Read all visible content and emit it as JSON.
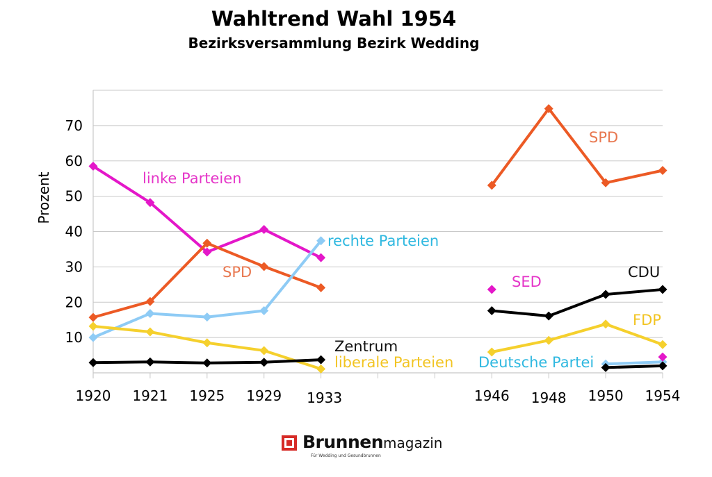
{
  "chart_data": {
    "type": "line",
    "title": "Wahltrend Wahl 1954",
    "subtitle": "Bezirksversammlung Bezirk Wedding",
    "ylabel": "Prozent",
    "xlabel": "",
    "ylim": [
      0,
      80
    ],
    "yticks": [
      10,
      20,
      30,
      40,
      50,
      60,
      70
    ],
    "categories": [
      "1920",
      "1921",
      "1925",
      "1929",
      "1933",
      "",
      "",
      "1946",
      "1948",
      "1950",
      "1954"
    ],
    "grid": true,
    "legend": "none",
    "series": [
      {
        "name": "linke Parteien",
        "color": "#e417c9",
        "x": [
          "1920",
          "1921",
          "1925",
          "1929",
          "1933"
        ],
        "values": [
          58.5,
          48.2,
          34.2,
          40.6,
          32.6
        ]
      },
      {
        "name": "SPD",
        "color": "#ec5a25",
        "x": [
          "1920",
          "1921",
          "1925",
          "1929",
          "1933"
        ],
        "values": [
          15.7,
          20.2,
          36.7,
          30.1,
          24.1
        ]
      },
      {
        "name": "rechte Parteien",
        "color": "#8ecbf5",
        "x": [
          "1920",
          "1921",
          "1925",
          "1929",
          "1933"
        ],
        "values": [
          10.0,
          16.8,
          15.8,
          17.6,
          37.4
        ]
      },
      {
        "name": "liberale Parteien",
        "color": "#f5d02d",
        "x": [
          "1920",
          "1921",
          "1925",
          "1929",
          "1933"
        ],
        "values": [
          13.2,
          11.6,
          8.5,
          6.3,
          1.1
        ]
      },
      {
        "name": "Zentrum",
        "color": "#000000",
        "x": [
          "1920",
          "1921",
          "1925",
          "1929",
          "1933"
        ],
        "values": [
          2.9,
          3.1,
          2.8,
          3.0,
          3.7
        ]
      },
      {
        "name": "SPD",
        "color": "#ec5a25",
        "x": [
          "1946",
          "1948",
          "1950",
          "1954"
        ],
        "values": [
          53.1,
          74.8,
          53.8,
          57.3
        ]
      },
      {
        "name": "SED",
        "color": "#e417c9",
        "x": [
          "1946"
        ],
        "values": [
          23.6
        ]
      },
      {
        "name": "CDU",
        "color": "#000000",
        "x": [
          "1946",
          "1948",
          "1950",
          "1954"
        ],
        "values": [
          17.6,
          16.1,
          22.2,
          23.6
        ]
      },
      {
        "name": "FDP",
        "color": "#f5d02d",
        "x": [
          "1946",
          "1948",
          "1950",
          "1954"
        ],
        "values": [
          5.9,
          9.2,
          13.8,
          8.0
        ]
      },
      {
        "name": "Deutsche Partei",
        "color": "#8ecbf5",
        "x": [
          "1950",
          "1954"
        ],
        "values": [
          2.5,
          3.1
        ]
      },
      {
        "name": "",
        "color": "#000000",
        "x": [
          "1950",
          "1954"
        ],
        "values": [
          1.5,
          2.0
        ]
      },
      {
        "name": "",
        "color": "#e417c9",
        "x": [
          "1954"
        ],
        "values": [
          4.5
        ]
      }
    ]
  },
  "branding": {
    "logo_bold": "Brunnen",
    "logo_light": "magazin",
    "tagline": "Für Wedding und Gesundbrunnen"
  }
}
